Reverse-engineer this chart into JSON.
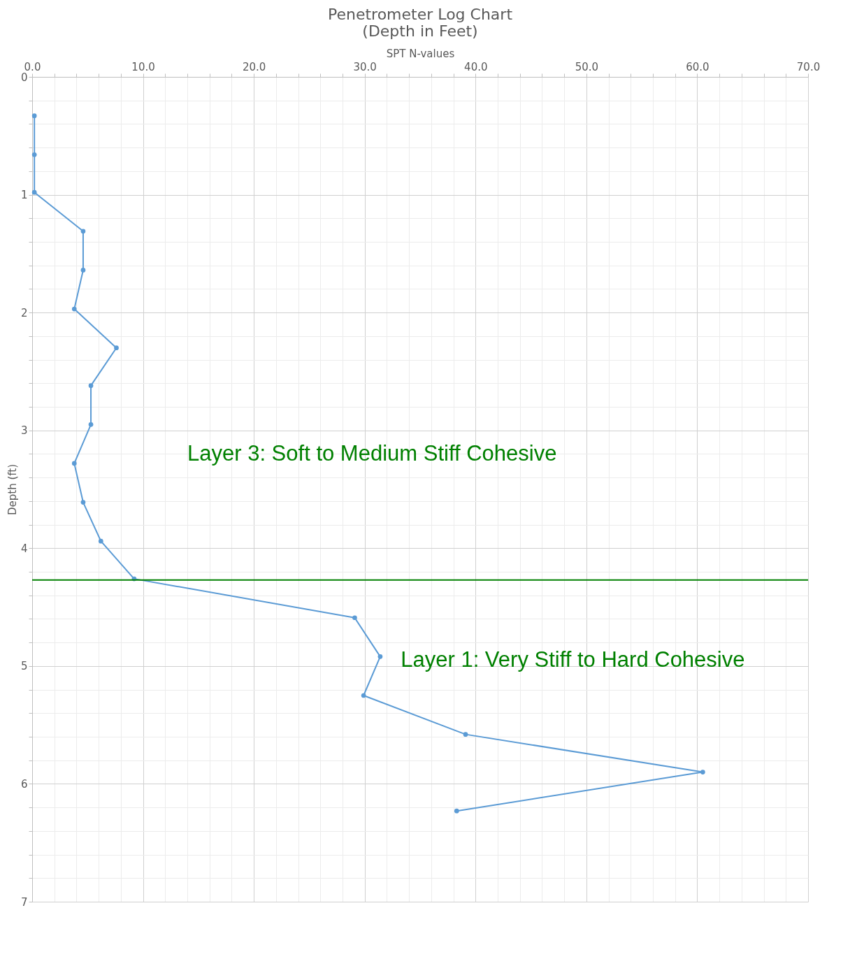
{
  "chart_data": {
    "type": "line",
    "title": "Penetrometer Log Chart\n(Depth in Feet)",
    "xlabel": "SPT N-values",
    "ylabel": "Depth (ft)",
    "x": [
      0.2,
      0.2,
      0.2,
      4.6,
      4.6,
      3.8,
      7.6,
      5.3,
      5.3,
      3.8,
      4.6,
      6.2,
      9.2,
      29.1,
      31.4,
      29.9,
      39.1,
      60.5,
      38.3
    ],
    "series": [
      {
        "color": "#5b9bd5",
        "values": [
          0.33,
          0.66,
          0.98,
          1.31,
          1.64,
          1.97,
          2.3,
          2.62,
          2.95,
          3.28,
          3.61,
          3.94,
          4.26,
          4.59,
          4.92,
          5.25,
          5.58,
          5.9,
          6.23
        ]
      }
    ],
    "xlim": [
      0,
      70
    ],
    "xticks": [
      {
        "value": 0,
        "label": "0.0"
      },
      {
        "value": 2,
        "label": null
      },
      {
        "value": 4,
        "label": null
      },
      {
        "value": 6,
        "label": null
      },
      {
        "value": 8,
        "label": null
      },
      {
        "value": 10,
        "label": "10.0"
      },
      {
        "value": 12,
        "label": null
      },
      {
        "value": 14,
        "label": null
      },
      {
        "value": 16,
        "label": null
      },
      {
        "value": 18,
        "label": null
      },
      {
        "value": 20,
        "label": "20.0"
      },
      {
        "value": 22,
        "label": null
      },
      {
        "value": 24,
        "label": null
      },
      {
        "value": 26,
        "label": null
      },
      {
        "value": 28,
        "label": null
      },
      {
        "value": 30,
        "label": "30.0"
      },
      {
        "value": 32,
        "label": null
      },
      {
        "value": 34,
        "label": null
      },
      {
        "value": 36,
        "label": null
      },
      {
        "value": 38,
        "label": null
      },
      {
        "value": 40,
        "label": "40.0"
      },
      {
        "value": 42,
        "label": null
      },
      {
        "value": 44,
        "label": null
      },
      {
        "value": 46,
        "label": null
      },
      {
        "value": 48,
        "label": null
      },
      {
        "value": 50,
        "label": "50.0"
      },
      {
        "value": 52,
        "label": null
      },
      {
        "value": 54,
        "label": null
      },
      {
        "value": 56,
        "label": null
      },
      {
        "value": 58,
        "label": null
      },
      {
        "value": 60,
        "label": "60.0"
      },
      {
        "value": 62,
        "label": null
      },
      {
        "value": 64,
        "label": null
      },
      {
        "value": 66,
        "label": null
      },
      {
        "value": 68,
        "label": null
      },
      {
        "value": 70,
        "label": "70.0"
      }
    ],
    "ylim": [
      7,
      0
    ],
    "yticks": [
      0,
      {
        "value": 0.2,
        "label": null
      },
      {
        "value": 0.4,
        "label": null
      },
      {
        "value": 0.6,
        "label": null
      },
      {
        "value": 0.8,
        "label": null
      },
      1,
      {
        "value": 1.2,
        "label": null
      },
      {
        "value": 1.4,
        "label": null
      },
      {
        "value": 1.6,
        "label": null
      },
      {
        "value": 1.8,
        "label": null
      },
      2,
      {
        "value": 2.2,
        "label": null
      },
      {
        "value": 2.4,
        "label": null
      },
      {
        "value": 2.6,
        "label": null
      },
      {
        "value": 2.8,
        "label": null
      },
      3,
      {
        "value": 3.2,
        "label": null
      },
      {
        "value": 3.4,
        "label": null
      },
      {
        "value": 3.6,
        "label": null
      },
      {
        "value": 3.8,
        "label": null
      },
      4,
      {
        "value": 4.2,
        "label": null
      },
      {
        "value": 4.4,
        "label": null
      },
      {
        "value": 4.6,
        "label": null
      },
      {
        "value": 4.8,
        "label": null
      },
      5,
      {
        "value": 5.2,
        "label": null
      },
      {
        "value": 5.4,
        "label": null
      },
      {
        "value": 5.6,
        "label": null
      },
      {
        "value": 5.8,
        "label": null
      },
      6,
      {
        "value": 6.2,
        "label": null
      },
      {
        "value": 6.4,
        "label": null
      },
      {
        "value": 6.6,
        "label": null
      },
      {
        "value": 6.8,
        "label": null
      },
      7
    ],
    "ref_lines": [
      {
        "axis": "y",
        "value": 4.27,
        "color": "#008000"
      }
    ],
    "annotations": [
      "Layer 3: Soft to Medium Stiff Cohesive",
      "Layer 1: Very Stiff to Hard Cohesive"
    ],
    "grid": true,
    "marker": "circle",
    "line_style": "solid"
  }
}
